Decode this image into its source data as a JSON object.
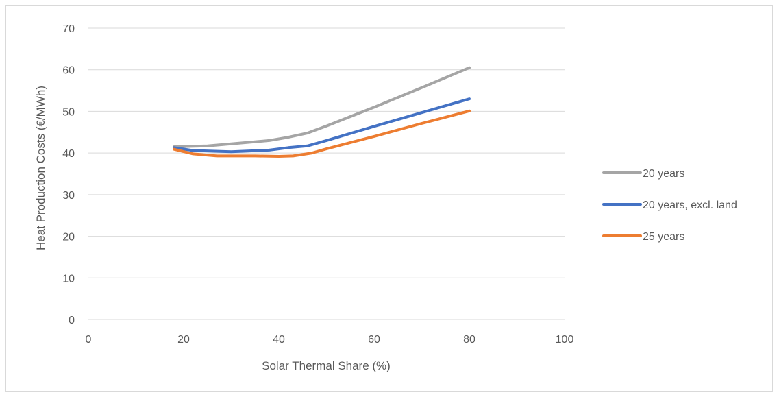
{
  "chart_data": {
    "type": "line",
    "title": "",
    "xlabel": "Solar Thermal Share (%)",
    "ylabel": "Heat Production Costs (€/MWh)",
    "xlim": [
      0,
      100
    ],
    "ylim": [
      0,
      70
    ],
    "x_ticks": [
      0,
      20,
      40,
      60,
      80,
      100
    ],
    "y_ticks": [
      0,
      10,
      20,
      30,
      40,
      50,
      60,
      70
    ],
    "grid": "horizontal",
    "legend_position": "right",
    "series": [
      {
        "name": "20 years",
        "color": "#a5a5a5",
        "points": [
          [
            18,
            41.5
          ],
          [
            25,
            41.7
          ],
          [
            30,
            42.2
          ],
          [
            38,
            43.0
          ],
          [
            42,
            43.8
          ],
          [
            46,
            44.8
          ],
          [
            50,
            46.5
          ],
          [
            60,
            51.0
          ],
          [
            70,
            55.7
          ],
          [
            80,
            60.5
          ]
        ]
      },
      {
        "name": "20 years, excl. land",
        "color": "#4472c4",
        "points": [
          [
            18,
            41.3
          ],
          [
            22,
            40.6
          ],
          [
            30,
            40.3
          ],
          [
            38,
            40.7
          ],
          [
            42,
            41.3
          ],
          [
            46,
            41.7
          ],
          [
            50,
            43.0
          ],
          [
            60,
            46.4
          ],
          [
            70,
            49.7
          ],
          [
            80,
            53.0
          ]
        ]
      },
      {
        "name": "25 years",
        "color": "#ed7d31",
        "points": [
          [
            18,
            40.9
          ],
          [
            22,
            39.8
          ],
          [
            27,
            39.3
          ],
          [
            35,
            39.3
          ],
          [
            40,
            39.2
          ],
          [
            43,
            39.3
          ],
          [
            47,
            40.0
          ],
          [
            50,
            41.0
          ],
          [
            60,
            44.0
          ],
          [
            70,
            47.1
          ],
          [
            80,
            50.1
          ]
        ]
      }
    ]
  }
}
